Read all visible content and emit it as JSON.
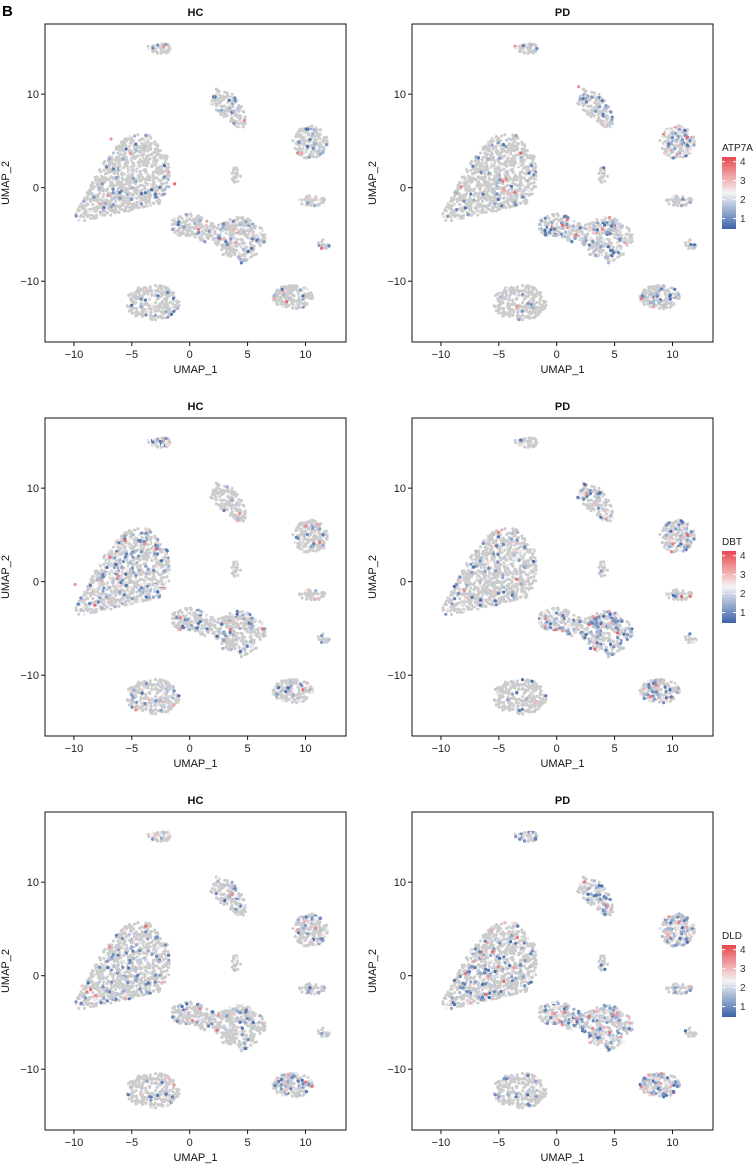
{
  "panel_label": "B",
  "colors": {
    "background_cells": "#cccccc",
    "low": "#3d64a8",
    "mid": "#f4f4f4",
    "high": "#e8484e"
  },
  "chart_data": [
    {
      "type": "scatter",
      "title": "HC",
      "gene": "ATP7A",
      "group": "HC",
      "xlabel": "UMAP_1",
      "ylabel": "UMAP_2",
      "xlim": [
        -12.5,
        13.5
      ],
      "ylim": [
        -16.5,
        17.5
      ],
      "xticks": [
        -10,
        -5,
        0,
        5,
        10
      ],
      "yticks": [
        -10,
        0,
        10
      ],
      "legend": {
        "title": "ATP7A",
        "ticks": [
          1,
          2,
          3,
          4
        ],
        "placement": "right"
      },
      "cluster_expression": [
        0.18,
        0.15,
        0.3,
        0.15,
        0.25,
        0.2,
        0.1,
        0.25,
        0.25,
        0.6,
        0.3,
        0.0,
        0.08
      ],
      "highlights": [
        {
          "x": -1.3,
          "y": 0.4,
          "v": 4
        },
        {
          "x": -6.8,
          "y": 5.2,
          "v": 3.5
        },
        {
          "x": -7.0,
          "y": -0.8,
          "v": 3.5
        },
        {
          "x": -3.0,
          "y": -12.8,
          "v": 3
        }
      ]
    },
    {
      "type": "scatter",
      "title": "PD",
      "gene": "ATP7A",
      "group": "PD",
      "xlabel": "UMAP_1",
      "ylabel": "UMAP_2",
      "xlim": [
        -12.5,
        13.5
      ],
      "ylim": [
        -16.5,
        17.5
      ],
      "xticks": [
        -10,
        -5,
        0,
        5,
        10
      ],
      "yticks": [
        -10,
        0,
        10
      ],
      "legend": {
        "title": "ATP7A",
        "ticks": [
          1,
          2,
          3,
          4
        ],
        "placement": "right"
      },
      "cluster_expression": [
        0.15,
        0.1,
        0.6,
        0.45,
        0.35,
        0.2,
        0.2,
        0.45,
        0.3,
        0.45,
        0.65,
        0.35,
        0.2
      ],
      "highlights": [
        {
          "x": 11.3,
          "y": 5.4,
          "v": 4
        },
        {
          "x": -3.1,
          "y": 3.7,
          "v": 4
        },
        {
          "x": 1.9,
          "y": 10.8,
          "v": 3.5
        },
        {
          "x": -3.4,
          "y": -12.7,
          "v": 3.5
        }
      ]
    },
    {
      "type": "scatter",
      "title": "HC",
      "gene": "DBT",
      "group": "HC",
      "xlabel": "UMAP_1",
      "ylabel": "UMAP_2",
      "xlim": [
        -12.5,
        13.5
      ],
      "ylim": [
        -16.5,
        17.5
      ],
      "xticks": [
        -10,
        -5,
        0,
        5,
        10
      ],
      "yticks": [
        -10,
        0,
        10
      ],
      "legend": {
        "title": "DBT",
        "ticks": [
          1,
          2,
          3,
          4
        ],
        "placement": "right"
      },
      "cluster_expression": [
        0.45,
        0.25,
        0.3,
        0.3,
        0.25,
        0.4,
        0.15,
        0.35,
        0.3,
        0.65,
        0.3,
        0.2,
        0.0
      ],
      "highlights": [
        {
          "x": -2.9,
          "y": 3.5,
          "v": 4
        },
        {
          "x": -5.6,
          "y": 4.4,
          "v": 4
        },
        {
          "x": -9.9,
          "y": -0.3,
          "v": 3.5
        },
        {
          "x": 11.6,
          "y": 3.6,
          "v": 3
        },
        {
          "x": -0.8,
          "y": -5.1,
          "v": 3.5
        }
      ]
    },
    {
      "type": "scatter",
      "title": "PD",
      "gene": "DBT",
      "group": "PD",
      "xlabel": "UMAP_1",
      "ylabel": "UMAP_2",
      "xlim": [
        -12.5,
        13.5
      ],
      "ylim": [
        -16.5,
        17.5
      ],
      "xticks": [
        -10,
        -5,
        0,
        5,
        10
      ],
      "yticks": [
        -10,
        0,
        10
      ],
      "legend": {
        "title": "DBT",
        "ticks": [
          1,
          2,
          3,
          4
        ],
        "placement": "right"
      },
      "cluster_expression": [
        0.25,
        0.15,
        0.7,
        0.55,
        0.45,
        0.35,
        0.25,
        0.55,
        0.45,
        0.5,
        0.6,
        0.5,
        0.0
      ],
      "highlights": [
        {
          "x": 11.3,
          "y": 5.0,
          "v": 4
        },
        {
          "x": 10.8,
          "y": -1.6,
          "v": 4
        },
        {
          "x": 2.6,
          "y": 9.4,
          "v": 3.5
        },
        {
          "x": -3.2,
          "y": 4.1,
          "v": 3
        }
      ]
    },
    {
      "type": "scatter",
      "title": "HC",
      "gene": "DLD",
      "group": "HC",
      "xlabel": "UMAP_1",
      "ylabel": "UMAP_2",
      "xlim": [
        -12.5,
        13.5
      ],
      "ylim": [
        -16.5,
        17.5
      ],
      "xticks": [
        -10,
        -5,
        0,
        5,
        10
      ],
      "yticks": [
        -10,
        0,
        10
      ],
      "legend": {
        "title": "DLD",
        "ticks": [
          1,
          2,
          3,
          4
        ],
        "placement": "right"
      },
      "cluster_expression": [
        0.3,
        0.25,
        0.3,
        0.4,
        0.45,
        0.4,
        0.2,
        0.45,
        0.4,
        0.7,
        0.4,
        0.05,
        0.05
      ],
      "highlights": [
        {
          "x": -3.8,
          "y": 5.3,
          "v": 4
        },
        {
          "x": -9.3,
          "y": -1.1,
          "v": 3
        },
        {
          "x": 2.5,
          "y": -4.2,
          "v": 3.5
        }
      ]
    },
    {
      "type": "scatter",
      "title": "PD",
      "gene": "DLD",
      "group": "PD",
      "xlabel": "UMAP_1",
      "ylabel": "UMAP_2",
      "xlim": [
        -12.5,
        13.5
      ],
      "ylim": [
        -16.5,
        17.5
      ],
      "xticks": [
        -10,
        -5,
        0,
        5,
        10
      ],
      "yticks": [
        -10,
        0,
        10
      ],
      "legend": {
        "title": "DLD",
        "ticks": [
          1,
          2,
          3,
          4
        ],
        "placement": "right"
      },
      "cluster_expression": [
        0.35,
        0.25,
        0.75,
        0.6,
        0.55,
        0.45,
        0.25,
        0.6,
        0.5,
        0.55,
        0.7,
        0.55,
        0.0
      ],
      "highlights": [
        {
          "x": -4.2,
          "y": 4.6,
          "v": 3
        },
        {
          "x": -6.5,
          "y": 2.0,
          "v": 3
        }
      ]
    }
  ]
}
